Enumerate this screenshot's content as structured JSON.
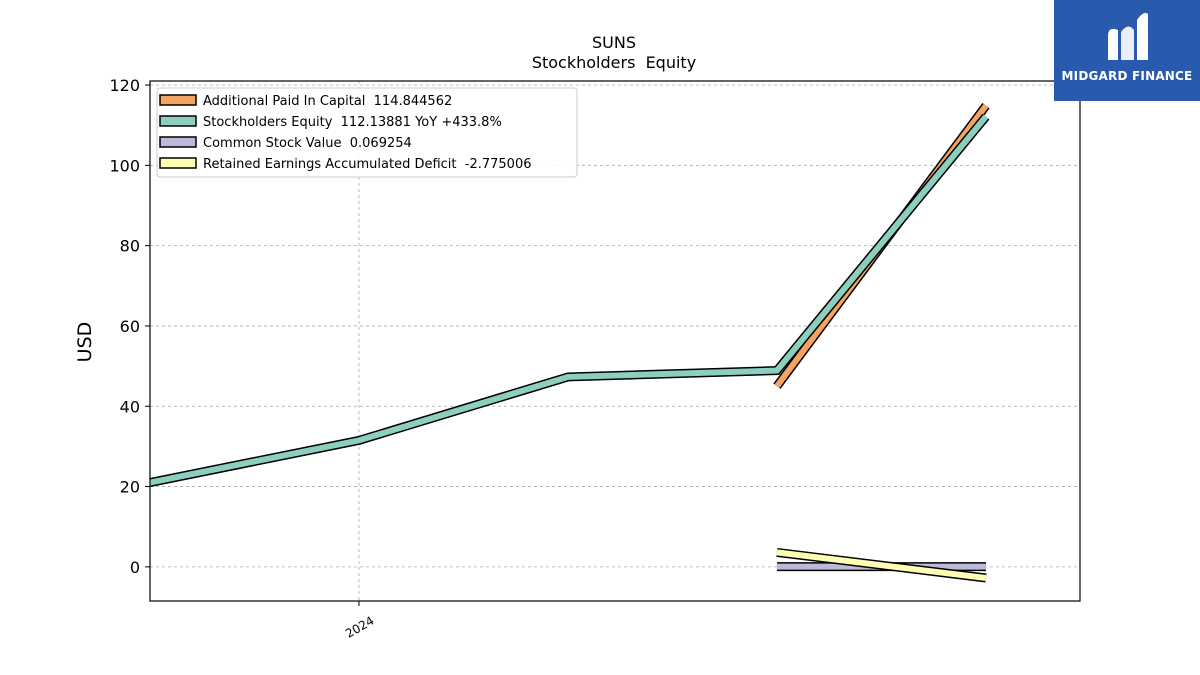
{
  "brand": {
    "name": "MIDGARD FINANCE",
    "logo_icon": "midgard-m-logo-icon",
    "background": "#2a5aad"
  },
  "chart_data": {
    "type": "line",
    "title": "SUNS",
    "subtitle": "Stockholders  Equity",
    "xlabel": "",
    "ylabel": "USD",
    "xlim": [
      0,
      4.45
    ],
    "ylim": [
      -8.5,
      121
    ],
    "x_ticks": [
      {
        "x": 1,
        "label": "2024"
      }
    ],
    "y_ticks": [
      0,
      20,
      40,
      60,
      80,
      100,
      120
    ],
    "grid": true,
    "legend_position": "top-left",
    "series": [
      {
        "name": "Additional Paid In Capital",
        "legend": "Additional Paid In Capital  114.844562",
        "color": "#f4a460",
        "x": [
          3,
          4
        ],
        "y": [
          45.0,
          114.844562
        ]
      },
      {
        "name": "Stockholders Equity",
        "legend": "Stockholders Equity  112.13881 YoY +433.8%",
        "color": "#8ccfbf",
        "x": [
          0,
          1,
          2,
          3,
          4
        ],
        "y": [
          21.0,
          31.5,
          47.3,
          48.9,
          112.13881
        ]
      },
      {
        "name": "Common Stock Value",
        "legend": "Common Stock Value  0.069254",
        "color": "#bcbad8",
        "x": [
          3,
          4
        ],
        "y": [
          0.069254,
          0.069254
        ]
      },
      {
        "name": "Retained Earnings Accumulated Deficit",
        "legend": "Retained Earnings Accumulated Deficit  -2.775006",
        "color": "#fdfdb4",
        "x": [
          3,
          4
        ],
        "y": [
          3.6,
          -2.775006
        ]
      }
    ]
  }
}
